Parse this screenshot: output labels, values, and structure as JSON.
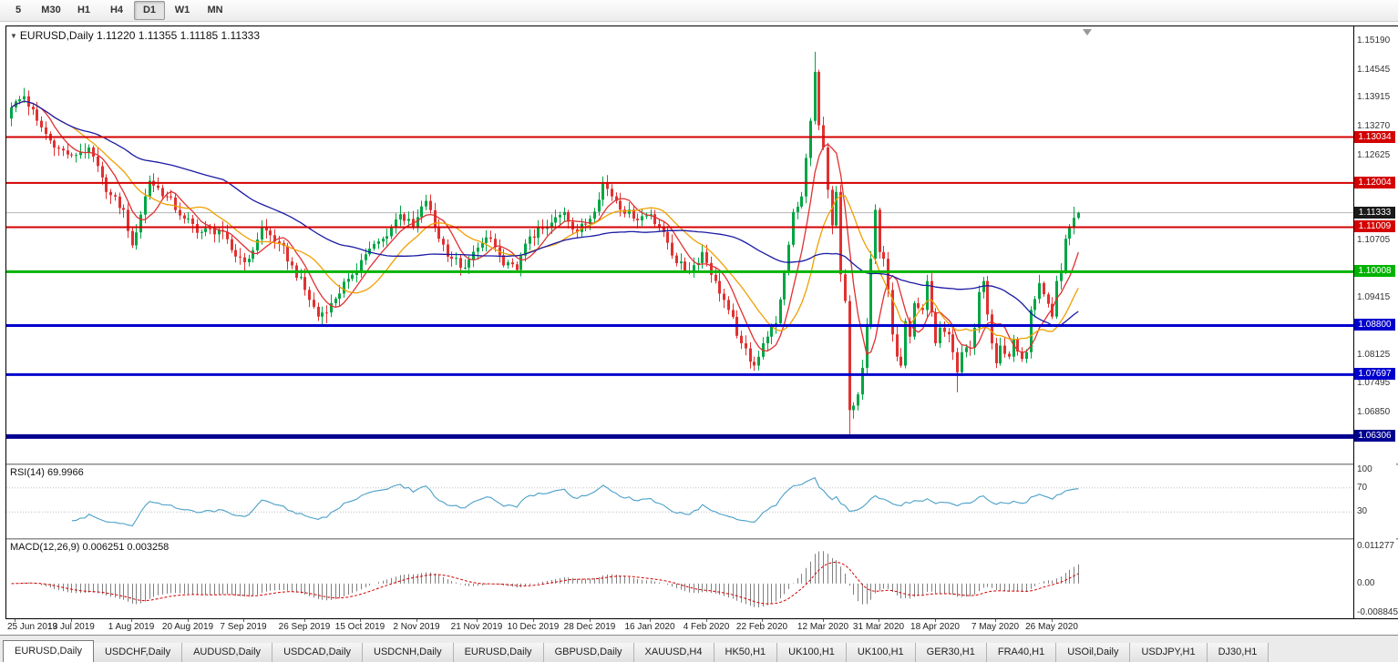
{
  "toolbar": {
    "timeframes": [
      {
        "label": "5",
        "active": false
      },
      {
        "label": "M30",
        "active": false
      },
      {
        "label": "H1",
        "active": false
      },
      {
        "label": "H4",
        "active": false
      },
      {
        "label": "D1",
        "active": true
      },
      {
        "label": "W1",
        "active": false
      },
      {
        "label": "MN",
        "active": false
      }
    ]
  },
  "window": {
    "title": "EURUSD,Daily",
    "ohlc_text": "1.11220 1.11355 1.11185 1.11333"
  },
  "chart_data": {
    "type": "candlestick",
    "symbol": "EURUSD",
    "timeframe": "Daily",
    "colors": {
      "up": "#00a544",
      "down": "#e13131",
      "background": "#ffffff"
    },
    "price_range": {
      "max": 1.1552,
      "min": 1.057
    },
    "price_axis_ticks": [
      "1.15190",
      "1.14545",
      "1.13915",
      "1.13270",
      "1.12625",
      "1.11995",
      "1.10705",
      "1.09415",
      "1.08125",
      "1.07495",
      "1.06850"
    ],
    "x_labels": [
      "25 Jun 2019",
      "13 Jul 2019",
      "1 Aug 2019",
      "20 Aug 2019",
      "7 Sep 2019",
      "26 Sep 2019",
      "15 Oct 2019",
      "2 Nov 2019",
      "21 Nov 2019",
      "10 Dec 2019",
      "28 Dec 2019",
      "16 Jan 2020",
      "4 Feb 2020",
      "22 Feb 2020",
      "12 Mar 2020",
      "31 Mar 2020",
      "18 Apr 2020",
      "7 May 2020",
      "26 May 2020"
    ],
    "x_label_indices": [
      1,
      14,
      28,
      41,
      54,
      68,
      81,
      94,
      108,
      121,
      134,
      148,
      161,
      174,
      188,
      201,
      214,
      228,
      241
    ],
    "hlines": [
      {
        "price": 1.13034,
        "label": "1.13034",
        "color": "#d40000",
        "width": 2
      },
      {
        "price": 1.12004,
        "label": "1.12004",
        "color": "#d40000",
        "width": 2
      },
      {
        "price": 1.11009,
        "label": "1.11009",
        "color": "#d40000",
        "width": 2
      },
      {
        "price": 1.10008,
        "label": "1.10008",
        "color": "#00b300",
        "width": 3
      },
      {
        "price": 1.088,
        "label": "1.08800",
        "color": "#0000cd",
        "width": 3
      },
      {
        "price": 1.07697,
        "label": "1.07697",
        "color": "#0000cd",
        "width": 3
      },
      {
        "price": 1.06306,
        "label": "1.06306",
        "color": "#000090",
        "width": 5
      }
    ],
    "current_price": {
      "value": 1.11333,
      "label": "1.11333",
      "line_color": "#b4b4b4",
      "badge_color": "#1a1a1a"
    },
    "moving_averages": [
      {
        "period": 7,
        "color": "#e03030"
      },
      {
        "period": 15,
        "color": "#f0a000"
      },
      {
        "period": 50,
        "color": "#1a1aa6"
      }
    ],
    "candles": {
      "count": 248,
      "anchors": [
        [
          0,
          1.137
        ],
        [
          3,
          1.1395
        ],
        [
          6,
          1.134
        ],
        [
          10,
          1.128
        ],
        [
          14,
          1.1262
        ],
        [
          18,
          1.128
        ],
        [
          22,
          1.118
        ],
        [
          26,
          1.114
        ],
        [
          28,
          1.106
        ],
        [
          32,
          1.1205
        ],
        [
          36,
          1.117
        ],
        [
          40,
          1.112
        ],
        [
          44,
          1.109
        ],
        [
          48,
          1.1095
        ],
        [
          52,
          1.1035
        ],
        [
          55,
          1.103
        ],
        [
          58,
          1.11
        ],
        [
          62,
          1.1065
        ],
        [
          65,
          1.1015
        ],
        [
          68,
          1.096
        ],
        [
          71,
          1.09
        ],
        [
          74,
          1.093
        ],
        [
          78,
          1.0985
        ],
        [
          82,
          1.104
        ],
        [
          86,
          1.1075
        ],
        [
          90,
          1.113
        ],
        [
          93,
          1.11
        ],
        [
          96,
          1.116
        ],
        [
          99,
          1.1075
        ],
        [
          102,
          1.103
        ],
        [
          105,
          1.101
        ],
        [
          108,
          1.1055
        ],
        [
          111,
          1.1075
        ],
        [
          114,
          1.1015
        ],
        [
          117,
          1.1005
        ],
        [
          120,
          1.108
        ],
        [
          124,
          1.11
        ],
        [
          128,
          1.1135
        ],
        [
          131,
          1.109
        ],
        [
          134,
          1.112
        ],
        [
          137,
          1.12
        ],
        [
          140,
          1.116
        ],
        [
          144,
          1.112
        ],
        [
          148,
          1.113
        ],
        [
          151,
          1.109
        ],
        [
          154,
          1.102
        ],
        [
          157,
          1.1
        ],
        [
          160,
          1.1045
        ],
        [
          163,
          1.098
        ],
        [
          166,
          1.0915
        ],
        [
          169,
          1.084
        ],
        [
          172,
          1.079
        ],
        [
          175,
          1.0855
        ],
        [
          177,
          1.0885
        ],
        [
          179,
          1.1
        ],
        [
          181,
          1.1135
        ],
        [
          183,
          1.117
        ],
        [
          185,
          1.134
        ],
        [
          186,
          1.145
        ],
        [
          187,
          1.133
        ],
        [
          188,
          1.128
        ],
        [
          189,
          1.1185
        ],
        [
          190,
          1.1105
        ],
        [
          191,
          1.118
        ],
        [
          192,
          1.0995
        ],
        [
          193,
          1.0935
        ],
        [
          194,
          1.069
        ],
        [
          195,
          1.07
        ],
        [
          196,
          1.0725
        ],
        [
          197,
          1.0785
        ],
        [
          198,
          1.088
        ],
        [
          199,
          1.103
        ],
        [
          200,
          1.114
        ],
        [
          201,
          1.1045
        ],
        [
          202,
          1.103
        ],
        [
          203,
          1.096
        ],
        [
          204,
          1.086
        ],
        [
          205,
          1.081
        ],
        [
          206,
          1.079
        ],
        [
          207,
          1.089
        ],
        [
          208,
          1.0855
        ],
        [
          209,
          1.093
        ],
        [
          211,
          1.0915
        ],
        [
          212,
          1.098
        ],
        [
          213,
          1.091
        ],
        [
          214,
          1.084
        ],
        [
          215,
          1.0875
        ],
        [
          217,
          1.086
        ],
        [
          218,
          1.082
        ],
        [
          219,
          1.0775
        ],
        [
          220,
          1.082
        ],
        [
          222,
          1.083
        ],
        [
          223,
          1.0875
        ],
        [
          224,
          1.0955
        ],
        [
          225,
          1.098
        ],
        [
          226,
          1.0905
        ],
        [
          227,
          1.084
        ],
        [
          228,
          1.0795
        ],
        [
          229,
          1.0835
        ],
        [
          231,
          1.081
        ],
        [
          232,
          1.085
        ],
        [
          234,
          1.0805
        ],
        [
          235,
          1.082
        ],
        [
          236,
          1.0915
        ],
        [
          238,
          1.0975
        ],
        [
          239,
          1.095
        ],
        [
          241,
          1.09
        ],
        [
          242,
          1.098
        ],
        [
          243,
          1.1
        ],
        [
          244,
          1.1075
        ],
        [
          245,
          1.11
        ],
        [
          246,
          1.1122
        ],
        [
          247,
          1.11333
        ]
      ],
      "high_overrides": {
        "186": 1.1495,
        "246": 1.1147,
        "247": 1.11355
      },
      "low_overrides": {
        "73": 1.0885,
        "172": 1.0778,
        "194": 1.0636,
        "219": 1.073,
        "247": 1.11185
      }
    },
    "rsi": {
      "label": "RSI(14)",
      "value": "69.9966",
      "color": "#4aa0c8",
      "levels": [
        {
          "v": 100,
          "label": "100"
        },
        {
          "v": 70,
          "label": "70"
        },
        {
          "v": 30,
          "label": "30"
        }
      ],
      "domain": {
        "max": 107,
        "min": -13
      }
    },
    "macd": {
      "label": "MACD(12,26,9)",
      "values": "0.006251 0.003258",
      "hist_color": "#808080",
      "signal_color": "#d40000",
      "axis": [
        {
          "v": 0.011277,
          "label": "0.011277"
        },
        {
          "v": 0,
          "label": "0.00"
        },
        {
          "v": -0.008845,
          "label": "-0.008845"
        }
      ],
      "domain": {
        "max": 0.01321,
        "min": -0.00995
      }
    }
  },
  "tabs": [
    {
      "label": "EURUSD,Daily",
      "active": true
    },
    {
      "label": "USDCHF,Daily",
      "active": false
    },
    {
      "label": "AUDUSD,Daily",
      "active": false
    },
    {
      "label": "USDCAD,Daily",
      "active": false
    },
    {
      "label": "USDCNH,Daily",
      "active": false
    },
    {
      "label": "EURUSD,Daily",
      "active": false
    },
    {
      "label": "GBPUSD,Daily",
      "active": false
    },
    {
      "label": "XAUUSD,H4",
      "active": false
    },
    {
      "label": "HK50,H1",
      "active": false
    },
    {
      "label": "UK100,H1",
      "active": false
    },
    {
      "label": "UK100,H1",
      "active": false
    },
    {
      "label": "GER30,H1",
      "active": false
    },
    {
      "label": "FRA40,H1",
      "active": false
    },
    {
      "label": "USOil,Daily",
      "active": false
    },
    {
      "label": "USDJPY,H1",
      "active": false
    },
    {
      "label": "DJ30,H1",
      "active": false
    }
  ]
}
